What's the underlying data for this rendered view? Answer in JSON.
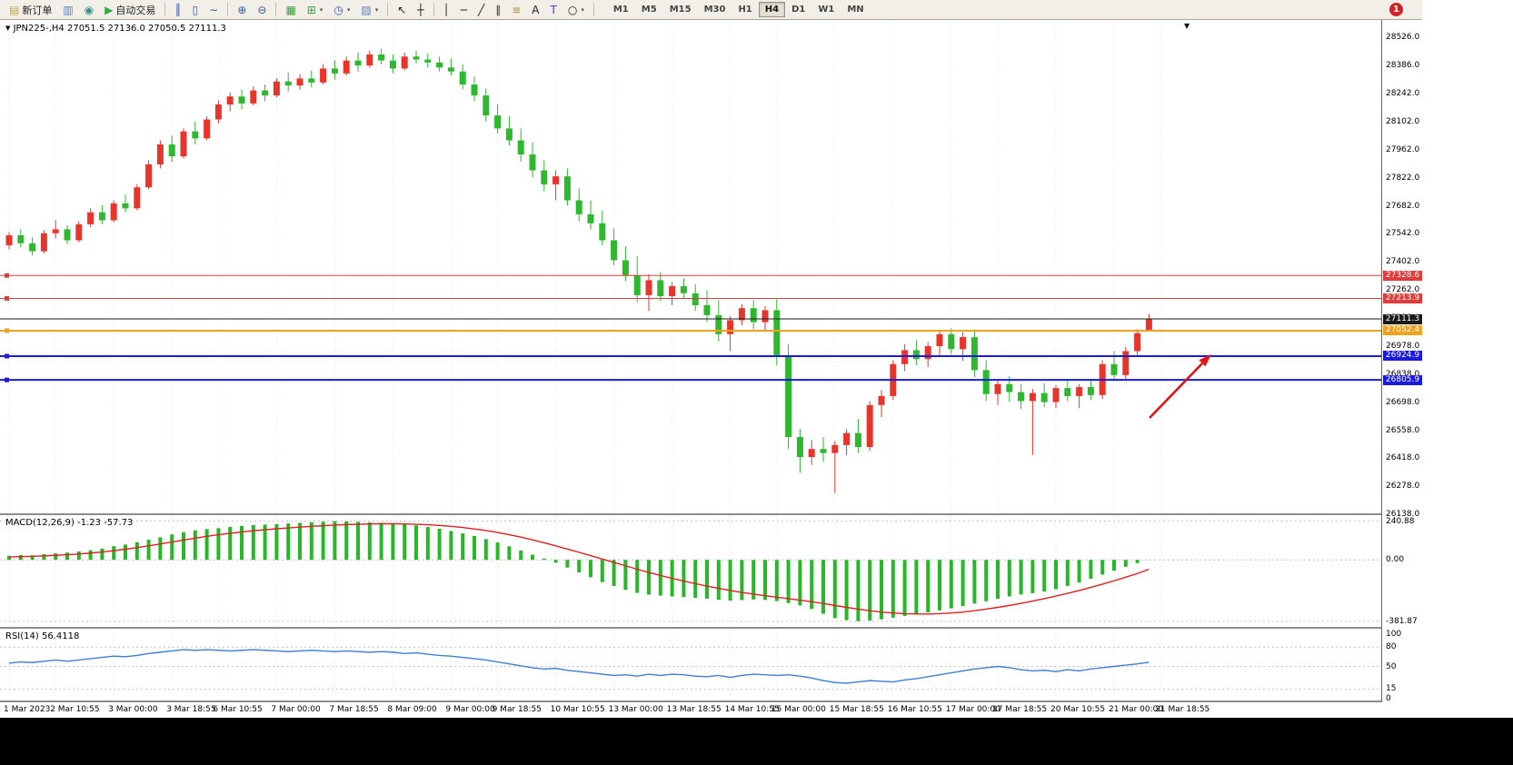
{
  "toolbar": {
    "notification": "1",
    "active_timeframe": "H4",
    "timeframes": [
      "M1",
      "M5",
      "M15",
      "M30",
      "H1",
      "H4",
      "D1",
      "W1",
      "MN"
    ],
    "items": [
      {
        "t": "btn",
        "n": "new-order-button",
        "g": "▤",
        "c": "#caa53d",
        "l": "新订单"
      },
      {
        "t": "ico",
        "n": "charts-icon",
        "g": "▥",
        "c": "#5b7fb5"
      },
      {
        "t": "ico",
        "n": "navigator-icon",
        "g": "◉",
        "c": "#3a8f8f"
      },
      {
        "t": "btn",
        "n": "auto-trading-button",
        "g": "▶",
        "c": "#2fae3a",
        "l": "自动交易"
      },
      {
        "t": "sep"
      },
      {
        "t": "ico",
        "n": "bar-chart-icon",
        "g": "║",
        "c": "#35599e"
      },
      {
        "t": "ico",
        "n": "candlestick-chart-icon",
        "g": "▯",
        "c": "#35599e"
      },
      {
        "t": "ico",
        "n": "line-chart-icon",
        "g": "∼",
        "c": "#35599e"
      },
      {
        "t": "sep"
      },
      {
        "t": "ico",
        "n": "zoom-in-icon",
        "g": "⊕",
        "c": "#35599e"
      },
      {
        "t": "ico",
        "n": "zoom-out-icon",
        "g": "⊖",
        "c": "#35599e"
      },
      {
        "t": "sep"
      },
      {
        "t": "ico",
        "n": "tile-windows-icon",
        "g": "▦",
        "c": "#3f9e3f"
      },
      {
        "t": "ico",
        "n": "new-chart-button",
        "g": "⊞",
        "c": "#3f9e3f",
        "dd": true
      },
      {
        "t": "ico",
        "n": "profiles-button",
        "g": "◷",
        "c": "#35599e",
        "dd": true
      },
      {
        "t": "ico",
        "n": "template-button",
        "g": "▨",
        "c": "#5b7fb5",
        "dd": true
      },
      {
        "t": "sep"
      },
      {
        "t": "ico",
        "n": "cursor-icon",
        "g": "↖",
        "c": "#222222"
      },
      {
        "t": "ico",
        "n": "crosshair-icon",
        "g": "┼",
        "c": "#222222"
      },
      {
        "t": "sep"
      },
      {
        "t": "ico",
        "n": "vertical-line-icon",
        "g": "│",
        "c": "#222222"
      },
      {
        "t": "ico",
        "n": "horizontal-line-icon",
        "g": "─",
        "c": "#222222"
      },
      {
        "t": "ico",
        "n": "trendline-icon",
        "g": "╱",
        "c": "#222222"
      },
      {
        "t": "ico",
        "n": "channel-icon",
        "g": "∥",
        "c": "#222222"
      },
      {
        "t": "ico",
        "n": "fibonacci-icon",
        "g": "≡",
        "c": "#b28a2f"
      },
      {
        "t": "ico",
        "n": "text-icon",
        "g": "A",
        "c": "#222222"
      },
      {
        "t": "ico",
        "n": "label-icon",
        "g": "T",
        "c": "#7b2fae"
      },
      {
        "t": "ico",
        "n": "shapes-button",
        "g": "○",
        "c": "#222222",
        "dd": true
      },
      {
        "t": "sep"
      }
    ]
  },
  "chart": {
    "title": "JPN225-,H4 27051.5 27136.0 27050.5 27111.3",
    "symbol": "JPN225-",
    "period": "H4",
    "open": "27051.5",
    "high": "27136.0",
    "low": "27050.5",
    "close": "27111.3",
    "marker": "▼",
    "scroll_marker": "▼"
  },
  "macd": {
    "label": "MACD(12,26,9) -1.23 -57.73",
    "scale": [
      {
        "label": "240.88",
        "val": 240.88
      },
      {
        "label": "0.00",
        "val": 0
      },
      {
        "label": "-381.87",
        "val": -381.87
      }
    ]
  },
  "rsi": {
    "label": "RSI(14) 56.4118",
    "levels": [
      80,
      50,
      15
    ],
    "scale": [
      {
        "label": "100",
        "val": 100
      },
      {
        "label": "80",
        "val": 80
      },
      {
        "label": "50",
        "val": 50
      },
      {
        "label": "15",
        "val": 15
      },
      {
        "label": "0",
        "val": 0
      }
    ]
  },
  "price_scale": {
    "ticks": [
      "28526.0",
      "28386.0",
      "28242.0",
      "28102.0",
      "27962.0",
      "27822.0",
      "27682.0",
      "27542.0",
      "27402.0",
      "27262.0",
      "27122.0",
      "26978.0",
      "26838.0",
      "26698.0",
      "26558.0",
      "26418.0",
      "26278.0",
      "26138.0"
    ],
    "badges": [
      {
        "v": "27328.6",
        "val": 27328.6,
        "c": "#e03c3c"
      },
      {
        "v": "27213.9",
        "val": 27213.9,
        "c": "#e03c3c"
      },
      {
        "v": "27111.3",
        "val": 27111.3,
        "c": "#1a1a1a"
      },
      {
        "v": "27052.4",
        "val": 27052.4,
        "c": "#f0a11e"
      },
      {
        "v": "26924.9",
        "val": 26924.9,
        "c": "#1a1adf"
      },
      {
        "v": "26805.9",
        "val": 26805.9,
        "c": "#1a1adf"
      }
    ]
  },
  "hlines": [
    {
      "name": "resistance-line-1",
      "price": 27328.6,
      "color": "#e03c3c",
      "width": 1,
      "anchor": true
    },
    {
      "name": "resistance-line-2",
      "price": 27213.9,
      "color": "#e03c3c",
      "width": 1,
      "anchor": true
    },
    {
      "name": "bid-price-line",
      "price": 27111.3,
      "color": "#1a1a1a",
      "width": 1,
      "anchor": false
    },
    {
      "name": "pivot-line-orange",
      "price": 27052.4,
      "color": "#f0a11e",
      "width": 2,
      "anchor": true
    },
    {
      "name": "support-line-1",
      "price": 26924.9,
      "color": "#1a1adf",
      "width": 2,
      "anchor": true
    },
    {
      "name": "support-line-2",
      "price": 26805.9,
      "color": "#1a1adf",
      "width": 2,
      "anchor": true
    }
  ],
  "time_axis": [
    {
      "t": "1 Mar 2023",
      "i": 0
    },
    {
      "t": "2 Mar 10:55",
      "i": 4
    },
    {
      "t": "3 Mar 00:00",
      "i": 9
    },
    {
      "t": "3 Mar 18:55",
      "i": 14
    },
    {
      "t": "6 Mar 10:55",
      "i": 18
    },
    {
      "t": "7 Mar 00:00",
      "i": 23
    },
    {
      "t": "7 Mar 18:55",
      "i": 28
    },
    {
      "t": "8 Mar 09:00",
      "i": 33
    },
    {
      "t": "9 Mar 00:00",
      "i": 38
    },
    {
      "t": "9 Mar 18:55",
      "i": 42
    },
    {
      "t": "10 Mar 10:55",
      "i": 47
    },
    {
      "t": "13 Mar 00:00",
      "i": 52
    },
    {
      "t": "13 Mar 18:55",
      "i": 57
    },
    {
      "t": "14 Mar 10:55",
      "i": 62
    },
    {
      "t": "15 Mar 00:00",
      "i": 66
    },
    {
      "t": "15 Mar 18:55",
      "i": 71
    },
    {
      "t": "16 Mar 10:55",
      "i": 76
    },
    {
      "t": "17 Mar 00:00",
      "i": 81
    },
    {
      "t": "17 Mar 18:55",
      "i": 85
    },
    {
      "t": "20 Mar 10:55",
      "i": 90
    },
    {
      "t": "21 Mar 00:00",
      "i": 95
    },
    {
      "t": "21 Mar 18:55",
      "i": 99
    }
  ],
  "colors": {
    "bull": "#e8352c",
    "bear": "#2eb82e",
    "macd_hist": "#27b827",
    "macd_signal": "#e02020",
    "rsi_line": "#3d7fd9",
    "grid": "#e4e4e4",
    "arrow": "#e01616",
    "badge_text": "#ffffff"
  },
  "chart_data": {
    "type": "candlestick",
    "symbol": "JPN225-",
    "timeframe": "H4",
    "y_axis_range": [
      26138.0,
      28526.0
    ],
    "candles_ohlc": [
      [
        27480,
        27545,
        27460,
        27530
      ],
      [
        27530,
        27560,
        27470,
        27490
      ],
      [
        27490,
        27520,
        27430,
        27450
      ],
      [
        27450,
        27555,
        27440,
        27540
      ],
      [
        27540,
        27605,
        27515,
        27560
      ],
      [
        27560,
        27580,
        27485,
        27505
      ],
      [
        27505,
        27600,
        27495,
        27585
      ],
      [
        27585,
        27665,
        27570,
        27645
      ],
      [
        27645,
        27680,
        27585,
        27605
      ],
      [
        27605,
        27705,
        27595,
        27690
      ],
      [
        27690,
        27735,
        27645,
        27665
      ],
      [
        27665,
        27785,
        27655,
        27770
      ],
      [
        27770,
        27905,
        27760,
        27885
      ],
      [
        27885,
        28005,
        27865,
        27985
      ],
      [
        27985,
        28030,
        27895,
        27925
      ],
      [
        27925,
        28065,
        27915,
        28050
      ],
      [
        28050,
        28100,
        27985,
        28015
      ],
      [
        28015,
        28125,
        28005,
        28110
      ],
      [
        28110,
        28205,
        28090,
        28185
      ],
      [
        28185,
        28245,
        28150,
        28225
      ],
      [
        28225,
        28260,
        28160,
        28190
      ],
      [
        28190,
        28275,
        28180,
        28255
      ],
      [
        28255,
        28285,
        28200,
        28230
      ],
      [
        28230,
        28315,
        28220,
        28300
      ],
      [
        28300,
        28345,
        28250,
        28280
      ],
      [
        28280,
        28335,
        28260,
        28315
      ],
      [
        28315,
        28355,
        28270,
        28295
      ],
      [
        28295,
        28385,
        28285,
        28365
      ],
      [
        28365,
        28405,
        28310,
        28340
      ],
      [
        28340,
        28425,
        28330,
        28405
      ],
      [
        28405,
        28445,
        28350,
        28380
      ],
      [
        28380,
        28455,
        28370,
        28435
      ],
      [
        28435,
        28465,
        28385,
        28405
      ],
      [
        28405,
        28435,
        28340,
        28365
      ],
      [
        28365,
        28445,
        28355,
        28425
      ],
      [
        28425,
        28455,
        28390,
        28410
      ],
      [
        28410,
        28440,
        28370,
        28395
      ],
      [
        28395,
        28425,
        28350,
        28370
      ],
      [
        28370,
        28415,
        28330,
        28350
      ],
      [
        28350,
        28385,
        28260,
        28285
      ],
      [
        28285,
        28325,
        28200,
        28230
      ],
      [
        28230,
        28265,
        28100,
        28130
      ],
      [
        28130,
        28185,
        28040,
        28065
      ],
      [
        28065,
        28125,
        27980,
        28005
      ],
      [
        28005,
        28065,
        27900,
        27935
      ],
      [
        27935,
        27995,
        27820,
        27855
      ],
      [
        27855,
        27905,
        27750,
        27785
      ],
      [
        27785,
        27855,
        27705,
        27825
      ],
      [
        27825,
        27865,
        27680,
        27705
      ],
      [
        27705,
        27765,
        27600,
        27635
      ],
      [
        27635,
        27705,
        27560,
        27590
      ],
      [
        27590,
        27655,
        27480,
        27505
      ],
      [
        27505,
        27565,
        27380,
        27405
      ],
      [
        27405,
        27475,
        27300,
        27330
      ],
      [
        27330,
        27425,
        27195,
        27230
      ],
      [
        27230,
        27335,
        27150,
        27305
      ],
      [
        27305,
        27345,
        27200,
        27225
      ],
      [
        27225,
        27295,
        27180,
        27275
      ],
      [
        27275,
        27315,
        27210,
        27240
      ],
      [
        27240,
        27285,
        27150,
        27180
      ],
      [
        27180,
        27255,
        27095,
        27130
      ],
      [
        27130,
        27205,
        27000,
        27035
      ],
      [
        27035,
        27125,
        26950,
        27105
      ],
      [
        27105,
        27185,
        27080,
        27165
      ],
      [
        27165,
        27205,
        27060,
        27095
      ],
      [
        27095,
        27175,
        27050,
        27155
      ],
      [
        27155,
        27210,
        26880,
        26930
      ],
      [
        26930,
        26985,
        26460,
        26520
      ],
      [
        26520,
        26560,
        26340,
        26420
      ],
      [
        26420,
        26505,
        26380,
        26460
      ],
      [
        26460,
        26520,
        26395,
        26440
      ],
      [
        26440,
        26500,
        26240,
        26480
      ],
      [
        26480,
        26560,
        26430,
        26540
      ],
      [
        26540,
        26610,
        26440,
        26470
      ],
      [
        26470,
        26700,
        26450,
        26680
      ],
      [
        26680,
        26755,
        26620,
        26725
      ],
      [
        26725,
        26905,
        26705,
        26885
      ],
      [
        26885,
        26985,
        26850,
        26955
      ],
      [
        26955,
        27005,
        26880,
        26910
      ],
      [
        26910,
        26995,
        26870,
        26975
      ],
      [
        26975,
        27055,
        26930,
        27035
      ],
      [
        27035,
        27065,
        26935,
        26960
      ],
      [
        26960,
        27045,
        26900,
        27020
      ],
      [
        27020,
        27060,
        26820,
        26855
      ],
      [
        26855,
        26905,
        26700,
        26735
      ],
      [
        26735,
        26805,
        26680,
        26785
      ],
      [
        26785,
        26825,
        26695,
        26745
      ],
      [
        26745,
        26785,
        26660,
        26700
      ],
      [
        26700,
        26760,
        26430,
        26740
      ],
      [
        26740,
        26790,
        26670,
        26695
      ],
      [
        26695,
        26780,
        26665,
        26765
      ],
      [
        26765,
        26805,
        26700,
        26725
      ],
      [
        26725,
        26785,
        26665,
        26770
      ],
      [
        26770,
        26810,
        26705,
        26730
      ],
      [
        26730,
        26905,
        26710,
        26885
      ],
      [
        26885,
        26950,
        26800,
        26830
      ],
      [
        26830,
        26970,
        26810,
        26950
      ],
      [
        26950,
        27060,
        26930,
        27040
      ],
      [
        27051.5,
        27136.0,
        27050.5,
        27111.3
      ]
    ],
    "macd": {
      "params": "12,26,9",
      "last_main": -1.23,
      "last_signal": -57.73,
      "range": [
        -381.87,
        240.88
      ],
      "histogram": [
        25,
        30,
        28,
        35,
        40,
        45,
        52,
        60,
        70,
        85,
        95,
        110,
        125,
        140,
        158,
        172,
        183,
        191,
        197,
        205,
        211,
        216,
        219,
        222,
        226,
        230,
        234,
        237,
        240,
        238,
        236,
        233,
        230,
        227,
        221,
        214,
        204,
        193,
        179,
        164,
        148,
        129,
        108,
        84,
        58,
        32,
        8,
        -18,
        -48,
        -78,
        -108,
        -138,
        -162,
        -186,
        -205,
        -216,
        -222,
        -227,
        -231,
        -236,
        -241,
        -248,
        -253,
        -250,
        -246,
        -249,
        -256,
        -268,
        -284,
        -305,
        -335,
        -362,
        -375,
        -381,
        -377,
        -369,
        -359,
        -348,
        -337,
        -326,
        -314,
        -301,
        -287,
        -272,
        -257,
        -242,
        -227,
        -215,
        -207,
        -197,
        -182,
        -162,
        -141,
        -117,
        -92,
        -67,
        -43,
        -20,
        -1
      ],
      "signal": [
        18,
        20,
        22,
        25,
        28,
        32,
        36,
        42,
        49,
        57,
        66,
        76,
        87,
        99,
        111,
        123,
        135,
        146,
        156,
        165,
        173,
        181,
        187,
        193,
        198,
        203,
        208,
        212,
        216,
        219,
        221,
        223,
        224,
        224,
        223,
        221,
        218,
        214,
        208,
        201,
        192,
        182,
        170,
        156,
        141,
        124,
        106,
        87,
        67,
        47,
        26,
        5,
        -16,
        -37,
        -58,
        -78,
        -97,
        -115,
        -132,
        -148,
        -163,
        -177,
        -190,
        -202,
        -213,
        -223,
        -232,
        -241,
        -250,
        -260,
        -271,
        -283,
        -295,
        -306,
        -316,
        -324,
        -330,
        -334,
        -336,
        -336,
        -334,
        -330,
        -324,
        -316,
        -306,
        -295,
        -283,
        -270,
        -256,
        -241,
        -225,
        -208,
        -190,
        -171,
        -151,
        -130,
        -108,
        -85,
        -58
      ]
    },
    "rsi": {
      "period": 14,
      "last": 56.4118,
      "range": [
        0,
        100
      ],
      "values": [
        55,
        57,
        56,
        58,
        60,
        58,
        60,
        62,
        64,
        66,
        65,
        67,
        70,
        72,
        74,
        76,
        75,
        76,
        75,
        74,
        75,
        76,
        75,
        74,
        73,
        74,
        75,
        74,
        73,
        74,
        73,
        72,
        73,
        72,
        70,
        71,
        69,
        67,
        66,
        64,
        62,
        60,
        57,
        54,
        51,
        48,
        46,
        47,
        44,
        42,
        40,
        38,
        36,
        37,
        35,
        38,
        36,
        38,
        37,
        35,
        34,
        36,
        33,
        36,
        38,
        37,
        36,
        37,
        35,
        32,
        28,
        25,
        24,
        26,
        28,
        27,
        26,
        29,
        31,
        34,
        37,
        40,
        43,
        46,
        48,
        50,
        48,
        45,
        43,
        44,
        42,
        45,
        43,
        46,
        48,
        50,
        52,
        54,
        56.4
      ]
    }
  }
}
